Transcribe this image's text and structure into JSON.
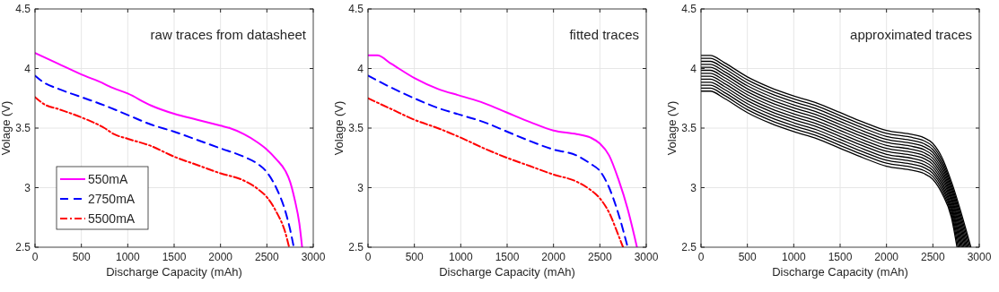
{
  "chart_data": [
    {
      "type": "line",
      "xlabel": "Discharge Capacity (mAh)",
      "ylabel": "Volage (V)",
      "annotations": [
        "raw traces from datasheet"
      ],
      "xlim": [
        0,
        3000
      ],
      "xticks": [
        0,
        500,
        1000,
        1500,
        2000,
        2500,
        3000
      ],
      "ylim": [
        2.5,
        4.5
      ],
      "yticks": [
        2.5,
        3,
        3.5,
        4,
        4.5
      ],
      "grid": true,
      "legend": "bottom left",
      "series": [
        {
          "name": "550mA",
          "color": "#ff00ff",
          "line_style": "solid",
          "x": [
            0,
            250,
            500,
            750,
            800,
            1000,
            1250,
            1500,
            1750,
            2000,
            2100,
            2250,
            2400,
            2500,
            2600,
            2700,
            2750,
            2800,
            2850,
            2880
          ],
          "values": [
            4.13,
            4.04,
            3.95,
            3.87,
            3.85,
            3.79,
            3.69,
            3.62,
            3.57,
            3.52,
            3.5,
            3.45,
            3.38,
            3.32,
            3.24,
            3.14,
            3.05,
            2.9,
            2.7,
            2.5
          ]
        },
        {
          "name": "2750mA",
          "color": "#0000ff",
          "line_style": "dashed",
          "x": [
            0,
            100,
            250,
            500,
            750,
            1000,
            1250,
            1500,
            1750,
            2000,
            2250,
            2400,
            2500,
            2600,
            2700,
            2750,
            2790
          ],
          "values": [
            3.94,
            3.88,
            3.83,
            3.76,
            3.69,
            3.61,
            3.53,
            3.47,
            3.4,
            3.33,
            3.26,
            3.2,
            3.13,
            3.0,
            2.8,
            2.65,
            2.5
          ]
        },
        {
          "name": "5500mA",
          "color": "#ff0000",
          "line_style": "dashdot",
          "x": [
            0,
            100,
            250,
            500,
            750,
            850,
            1000,
            1250,
            1500,
            1750,
            2000,
            2250,
            2400,
            2500,
            2600,
            2700,
            2740
          ],
          "values": [
            3.76,
            3.7,
            3.66,
            3.59,
            3.5,
            3.45,
            3.41,
            3.35,
            3.26,
            3.19,
            3.12,
            3.06,
            2.99,
            2.92,
            2.8,
            2.62,
            2.5
          ]
        }
      ]
    },
    {
      "type": "line",
      "xlabel": "Discharge Capacity (mAh)",
      "ylabel": "Volage (V)",
      "annotations": [
        "fitted traces"
      ],
      "xlim": [
        0,
        3000
      ],
      "xticks": [
        0,
        500,
        1000,
        1500,
        2000,
        2500,
        3000
      ],
      "ylim": [
        2.5,
        4.5
      ],
      "yticks": [
        2.5,
        3,
        3.5,
        4,
        4.5
      ],
      "grid": true,
      "series": [
        {
          "color": "#ff00ff",
          "line_style": "solid",
          "x": [
            0,
            100,
            250,
            500,
            750,
            1000,
            1250,
            1500,
            1750,
            2000,
            2250,
            2400,
            2500,
            2600,
            2700,
            2800,
            2900
          ],
          "values": [
            4.11,
            4.11,
            4.04,
            3.92,
            3.83,
            3.77,
            3.71,
            3.63,
            3.55,
            3.48,
            3.45,
            3.42,
            3.37,
            3.27,
            3.07,
            2.82,
            2.5
          ]
        },
        {
          "color": "#0000ff",
          "line_style": "dashed",
          "x": [
            0,
            250,
            500,
            750,
            1000,
            1250,
            1500,
            1750,
            2000,
            2250,
            2400,
            2500,
            2600,
            2700,
            2800
          ],
          "values": [
            3.94,
            3.84,
            3.75,
            3.67,
            3.61,
            3.55,
            3.47,
            3.39,
            3.32,
            3.27,
            3.2,
            3.14,
            3.0,
            2.78,
            2.5
          ]
        },
        {
          "color": "#ff0000",
          "line_style": "dashdot",
          "x": [
            0,
            250,
            500,
            750,
            1000,
            1250,
            1500,
            1750,
            2000,
            2250,
            2400,
            2500,
            2600,
            2700,
            2750
          ],
          "values": [
            3.75,
            3.66,
            3.57,
            3.5,
            3.42,
            3.33,
            3.25,
            3.18,
            3.11,
            3.05,
            2.98,
            2.91,
            2.79,
            2.6,
            2.5
          ]
        }
      ]
    },
    {
      "type": "line",
      "xlabel": "Discharge Capacity (mAh)",
      "ylabel": "Volage (V)",
      "annotations": [
        "approximated traces"
      ],
      "xlim": [
        0,
        3000
      ],
      "xticks": [
        0,
        500,
        1000,
        1500,
        2000,
        2500,
        3000
      ],
      "ylim": [
        2.5,
        4.5
      ],
      "yticks": [
        2.5,
        3,
        3.5,
        4,
        4.5
      ],
      "grid": true,
      "series": [
        {
          "color": "#000000",
          "line_style": "solid",
          "x": [
            0,
            100,
            250,
            500,
            750,
            1000,
            1250,
            1500,
            1750,
            2000,
            2250,
            2400,
            2500,
            2600,
            2700,
            2910
          ],
          "values": [
            4.11,
            4.11,
            4.05,
            3.93,
            3.84,
            3.77,
            3.71,
            3.63,
            3.55,
            3.48,
            3.45,
            3.42,
            3.37,
            3.25,
            3.05,
            2.5
          ]
        },
        {
          "color": "#000000",
          "line_style": "solid",
          "x": [
            0,
            100,
            250,
            500,
            750,
            1000,
            1250,
            1500,
            1750,
            2000,
            2250,
            2400,
            2500,
            2600,
            2700,
            2898
          ],
          "values": [
            4.085,
            4.085,
            4.025,
            3.905,
            3.815,
            3.745,
            3.685,
            3.605,
            3.525,
            3.455,
            3.425,
            3.395,
            3.345,
            3.225,
            3.025,
            2.5
          ]
        },
        {
          "color": "#000000",
          "line_style": "solid",
          "x": [
            0,
            100,
            250,
            500,
            750,
            1000,
            1250,
            1500,
            1750,
            2000,
            2250,
            2400,
            2500,
            2600,
            2700,
            2885
          ],
          "values": [
            4.06,
            4.06,
            4.0,
            3.88,
            3.79,
            3.72,
            3.66,
            3.58,
            3.5,
            3.43,
            3.4,
            3.37,
            3.32,
            3.2,
            3.0,
            2.5
          ]
        },
        {
          "color": "#000000",
          "line_style": "solid",
          "x": [
            0,
            100,
            250,
            500,
            750,
            1000,
            1250,
            1500,
            1750,
            2000,
            2250,
            2400,
            2500,
            2600,
            2700,
            2872
          ],
          "values": [
            4.035,
            4.035,
            3.975,
            3.855,
            3.765,
            3.695,
            3.635,
            3.555,
            3.475,
            3.405,
            3.375,
            3.345,
            3.295,
            3.175,
            2.975,
            2.5
          ]
        },
        {
          "color": "#000000",
          "line_style": "solid",
          "x": [
            0,
            100,
            250,
            500,
            750,
            1000,
            1250,
            1500,
            1750,
            2000,
            2250,
            2400,
            2500,
            2600,
            2700,
            2860
          ],
          "values": [
            4.01,
            4.01,
            3.95,
            3.83,
            3.74,
            3.67,
            3.61,
            3.53,
            3.45,
            3.38,
            3.35,
            3.32,
            3.27,
            3.15,
            2.95,
            2.5
          ]
        },
        {
          "color": "#000000",
          "line_style": "solid",
          "x": [
            0,
            100,
            250,
            500,
            750,
            1000,
            1250,
            1500,
            1750,
            2000,
            2250,
            2400,
            2500,
            2600,
            2700,
            2848
          ],
          "values": [
            3.985,
            3.985,
            3.925,
            3.805,
            3.715,
            3.645,
            3.585,
            3.505,
            3.425,
            3.355,
            3.325,
            3.295,
            3.245,
            3.125,
            2.925,
            2.5
          ]
        },
        {
          "color": "#000000",
          "line_style": "solid",
          "x": [
            0,
            100,
            250,
            500,
            750,
            1000,
            1250,
            1500,
            1750,
            2000,
            2250,
            2400,
            2500,
            2600,
            2700,
            2835
          ],
          "values": [
            3.96,
            3.96,
            3.9,
            3.78,
            3.69,
            3.62,
            3.56,
            3.48,
            3.4,
            3.33,
            3.3,
            3.27,
            3.22,
            3.1,
            2.9,
            2.5
          ]
        },
        {
          "color": "#000000",
          "line_style": "solid",
          "x": [
            0,
            100,
            250,
            500,
            750,
            1000,
            1250,
            1500,
            1750,
            2000,
            2250,
            2400,
            2500,
            2600,
            2700,
            2822
          ],
          "values": [
            3.935,
            3.935,
            3.875,
            3.755,
            3.665,
            3.595,
            3.535,
            3.455,
            3.375,
            3.305,
            3.275,
            3.245,
            3.195,
            3.075,
            2.875,
            2.5
          ]
        },
        {
          "color": "#000000",
          "line_style": "solid",
          "x": [
            0,
            100,
            250,
            500,
            750,
            1000,
            1250,
            1500,
            1750,
            2000,
            2250,
            2400,
            2500,
            2600,
            2700,
            2810
          ],
          "values": [
            3.91,
            3.91,
            3.85,
            3.73,
            3.64,
            3.57,
            3.51,
            3.43,
            3.35,
            3.28,
            3.25,
            3.22,
            3.17,
            3.05,
            2.85,
            2.5
          ]
        },
        {
          "color": "#000000",
          "line_style": "solid",
          "x": [
            0,
            100,
            250,
            500,
            750,
            1000,
            1250,
            1500,
            1750,
            2000,
            2250,
            2400,
            2500,
            2600,
            2700,
            2798
          ],
          "values": [
            3.885,
            3.885,
            3.825,
            3.705,
            3.615,
            3.545,
            3.485,
            3.405,
            3.325,
            3.255,
            3.225,
            3.195,
            3.145,
            3.025,
            2.825,
            2.5
          ]
        },
        {
          "color": "#000000",
          "line_style": "solid",
          "x": [
            0,
            100,
            250,
            500,
            750,
            1000,
            1250,
            1500,
            1750,
            2000,
            2250,
            2400,
            2500,
            2600,
            2700,
            2785
          ],
          "values": [
            3.86,
            3.86,
            3.8,
            3.68,
            3.59,
            3.52,
            3.46,
            3.38,
            3.3,
            3.23,
            3.2,
            3.17,
            3.12,
            3.0,
            2.8,
            2.5
          ]
        },
        {
          "color": "#000000",
          "line_style": "solid",
          "x": [
            0,
            100,
            250,
            500,
            750,
            1000,
            1250,
            1500,
            1750,
            2000,
            2250,
            2400,
            2500,
            2600,
            2700,
            2772
          ],
          "values": [
            3.835,
            3.835,
            3.775,
            3.655,
            3.565,
            3.495,
            3.435,
            3.355,
            3.275,
            3.205,
            3.175,
            3.145,
            3.095,
            2.975,
            2.775,
            2.5
          ]
        },
        {
          "color": "#000000",
          "line_style": "solid",
          "x": [
            0,
            100,
            250,
            500,
            750,
            1000,
            1250,
            1500,
            1750,
            2000,
            2250,
            2400,
            2500,
            2600,
            2700,
            2760
          ],
          "values": [
            3.81,
            3.81,
            3.75,
            3.63,
            3.54,
            3.47,
            3.41,
            3.33,
            3.25,
            3.18,
            3.15,
            3.12,
            3.07,
            2.95,
            2.75,
            2.5
          ]
        }
      ]
    }
  ]
}
